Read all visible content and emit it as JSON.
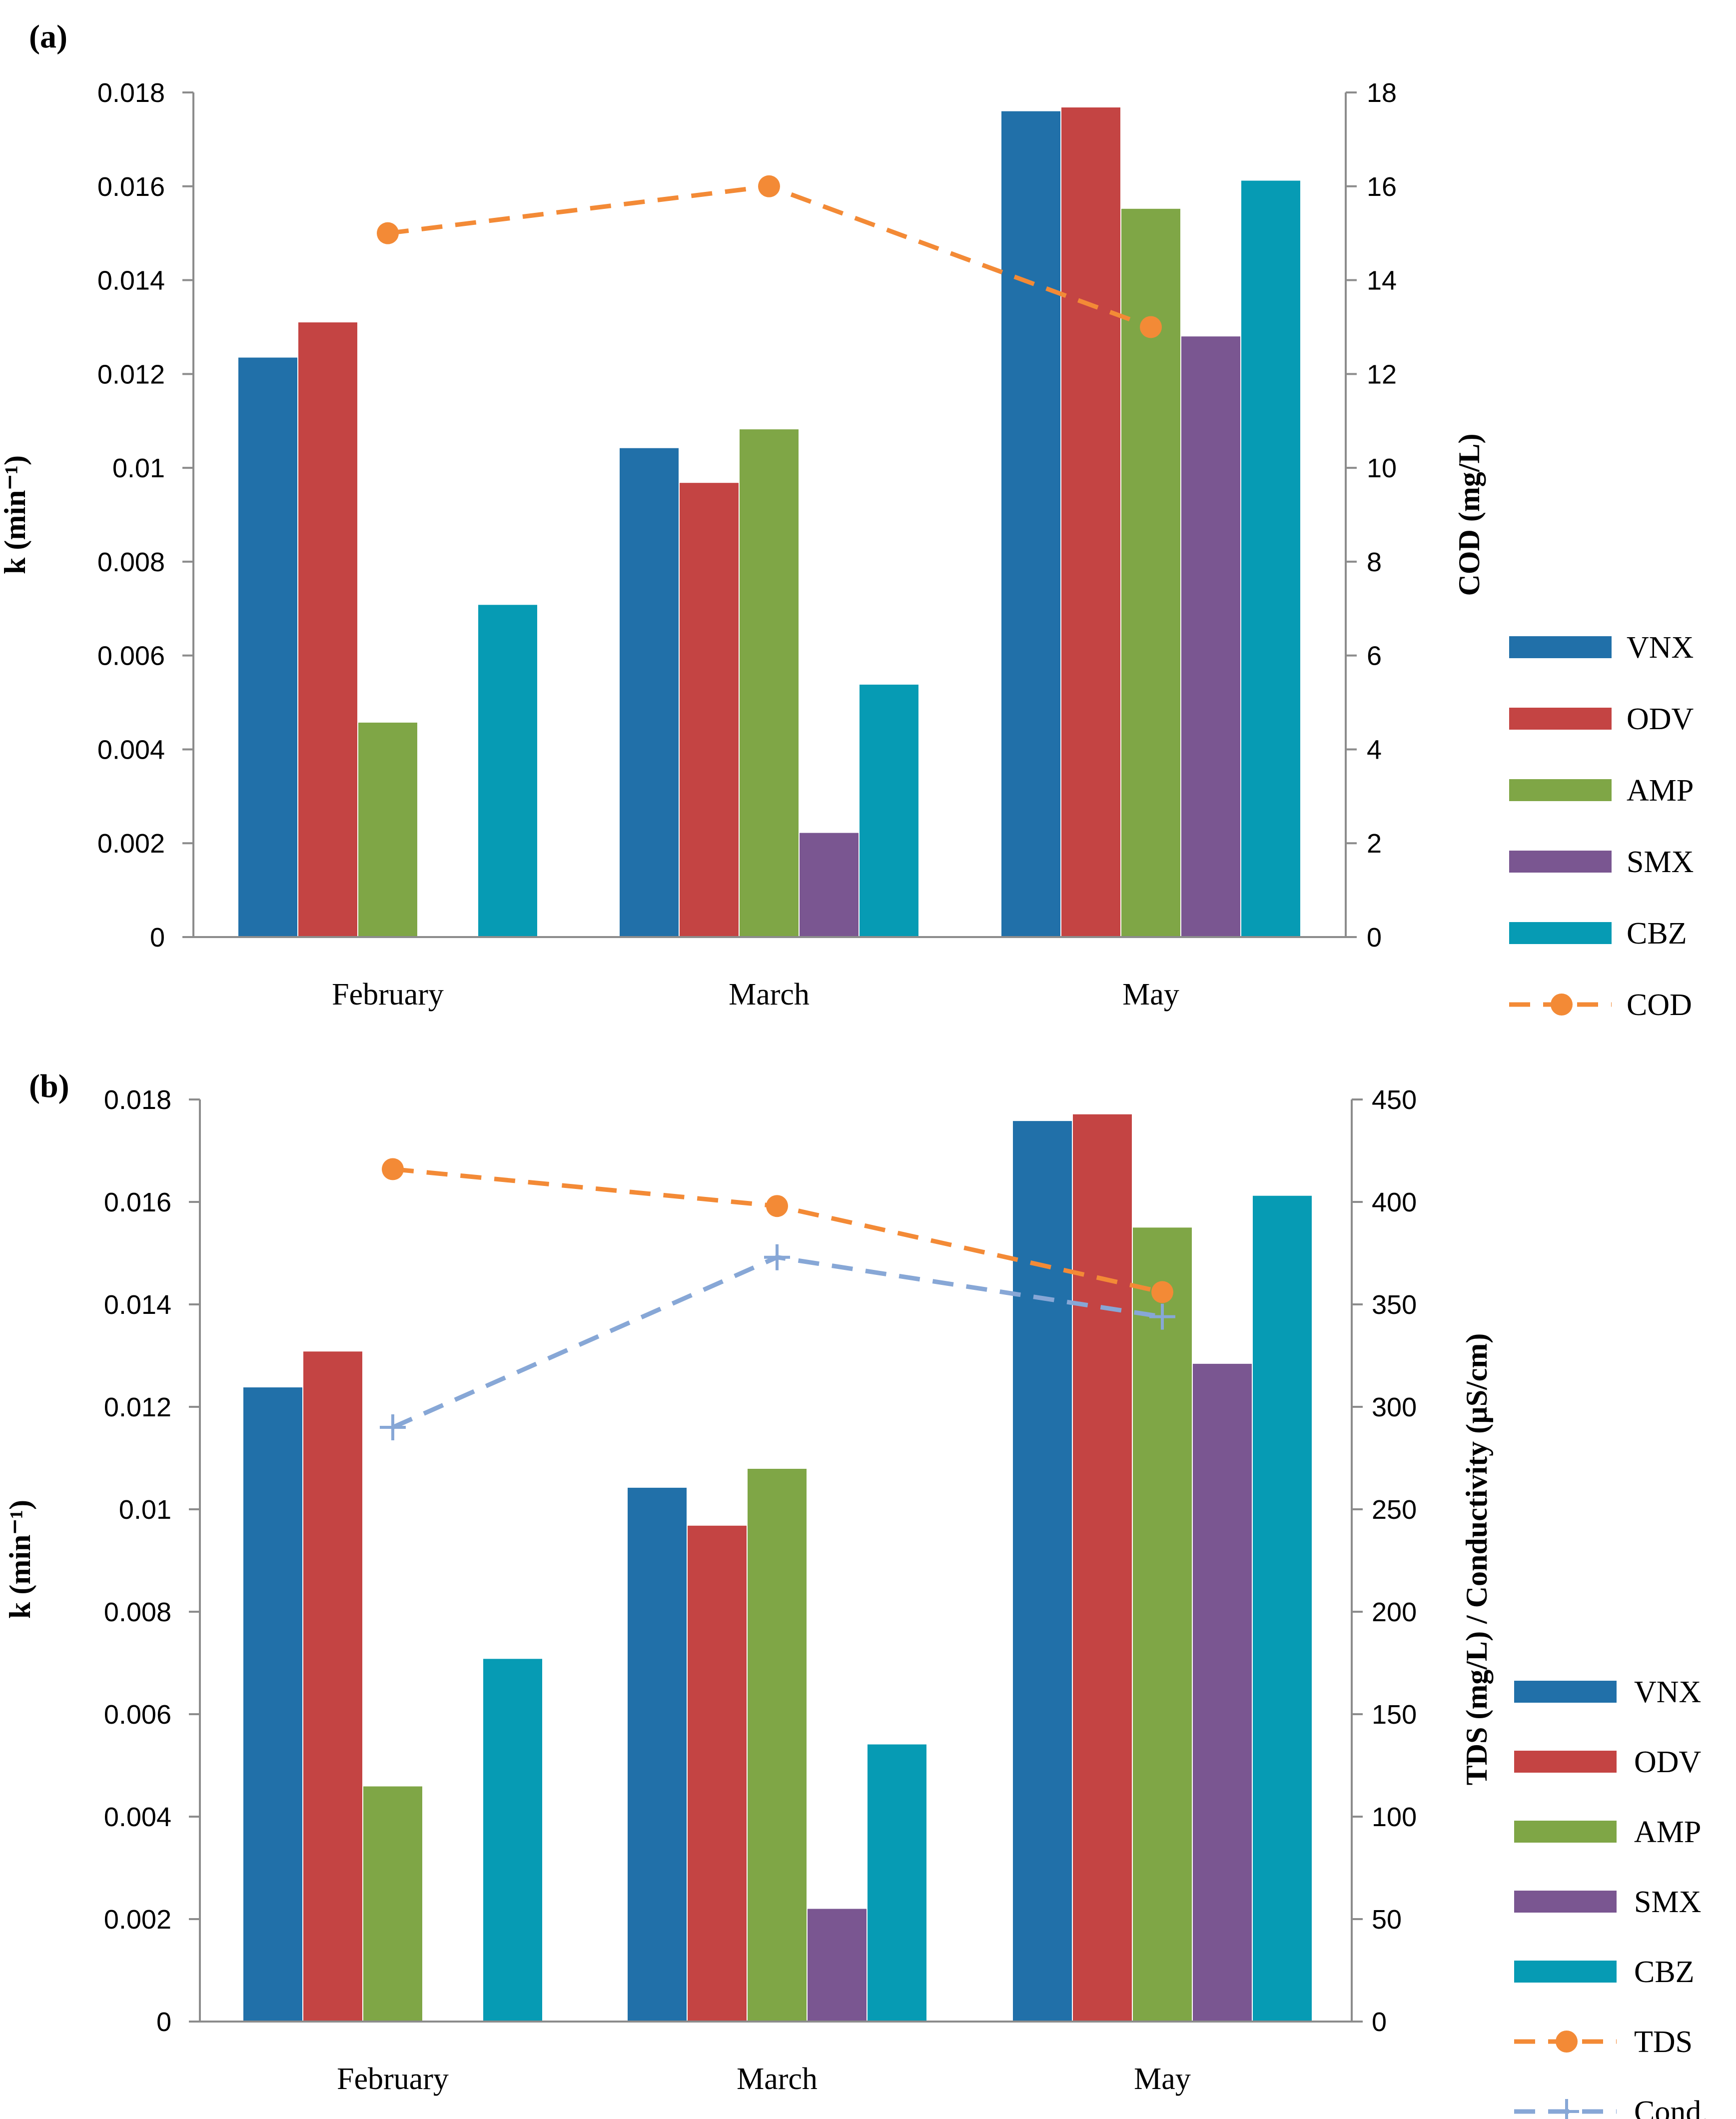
{
  "colors": {
    "VNX": "#2170A9",
    "ODV": "#C44443",
    "AMP": "#7FA646",
    "SMX": "#7A5691",
    "CBZ": "#069BB4",
    "COD": "#F38A36",
    "TDS": "#F38A36",
    "Cond.": "#87A7D6",
    "axis": "#8C8C8C"
  },
  "chart_data": [
    {
      "panel_label": "(a)",
      "type": "bar",
      "categories": [
        "February",
        "March",
        "May"
      ],
      "series": [
        {
          "name": "VNX",
          "values": [
            0.01235,
            0.01042,
            0.0176
          ]
        },
        {
          "name": "ODV",
          "values": [
            0.0131,
            0.00968,
            0.01768
          ]
        },
        {
          "name": "AMP",
          "values": [
            0.00457,
            0.01082,
            0.01552
          ]
        },
        {
          "name": "SMX",
          "values": [
            null,
            0.00222,
            0.0128
          ]
        },
        {
          "name": "CBZ",
          "values": [
            0.00708,
            0.00538,
            0.01612
          ]
        }
      ],
      "line_series": [
        {
          "name": "COD",
          "axis": "right",
          "style": "dashed-circle",
          "values": [
            15.0,
            16.0,
            13.0
          ]
        }
      ],
      "ylabel": "k (min⁻¹)",
      "ylim": [
        0,
        0.018
      ],
      "yticks": [
        "0",
        "0.002",
        "0.004",
        "0.006",
        "0.008",
        "0.01",
        "0.012",
        "0.014",
        "0.016",
        "0.018"
      ],
      "y2label": "COD (mg/L)",
      "y2lim": [
        0,
        18
      ],
      "y2ticks": [
        "0",
        "2",
        "4",
        "6",
        "8",
        "10",
        "12",
        "14",
        "16",
        "18"
      ],
      "legend": [
        "VNX",
        "ODV",
        "AMP",
        "SMX",
        "CBZ",
        "COD"
      ],
      "legend_position": "right"
    },
    {
      "panel_label": "(b)",
      "type": "bar",
      "categories": [
        "February",
        "March",
        "May"
      ],
      "series": [
        {
          "name": "VNX",
          "values": [
            0.01238,
            0.01042,
            0.01758
          ]
        },
        {
          "name": "ODV",
          "values": [
            0.01308,
            0.00968,
            0.01771
          ]
        },
        {
          "name": "AMP",
          "values": [
            0.00459,
            0.01079,
            0.0155
          ]
        },
        {
          "name": "SMX",
          "values": [
            null,
            0.0022,
            0.01284
          ]
        },
        {
          "name": "CBZ",
          "values": [
            0.00708,
            0.00541,
            0.01612
          ]
        }
      ],
      "line_series": [
        {
          "name": "TDS",
          "axis": "right",
          "style": "dashed-circle",
          "values": [
            416,
            398,
            356
          ]
        },
        {
          "name": "Cond.",
          "axis": "right",
          "style": "dashed-plus",
          "values": [
            290,
            373,
            344
          ]
        }
      ],
      "ylabel": "k (min⁻¹)",
      "ylim": [
        0,
        0.018
      ],
      "yticks": [
        "0",
        "0.002",
        "0.004",
        "0.006",
        "0.008",
        "0.01",
        "0.012",
        "0.014",
        "0.016",
        "0.018"
      ],
      "y2label": "TDS (mg/L) / Conductivity (µS/cm)",
      "y2lim": [
        0,
        450
      ],
      "y2ticks": [
        "0",
        "50",
        "100",
        "150",
        "200",
        "250",
        "300",
        "350",
        "400",
        "450"
      ],
      "legend": [
        "VNX",
        "ODV",
        "AMP",
        "SMX",
        "CBZ",
        "TDS",
        "Cond."
      ],
      "legend_position": "right"
    }
  ]
}
